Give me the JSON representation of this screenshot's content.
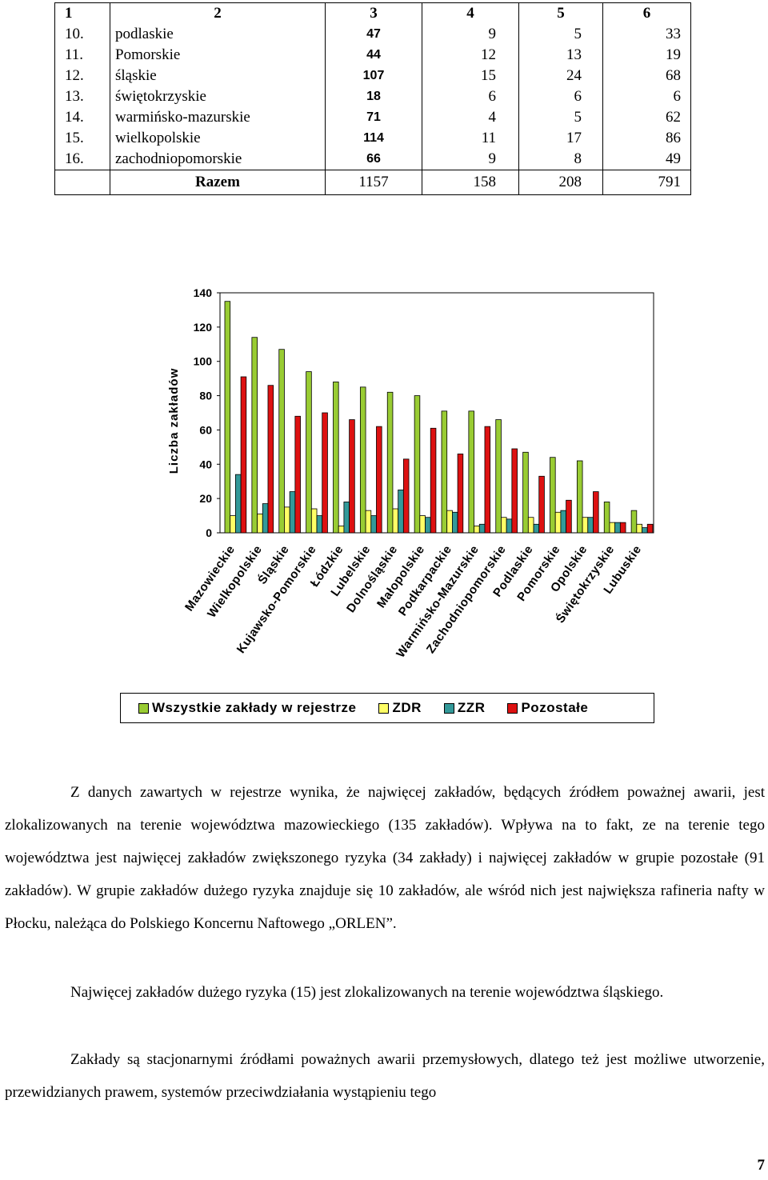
{
  "table": {
    "header": [
      "1",
      "2",
      "3",
      "4",
      "5",
      "6"
    ],
    "rows": [
      {
        "no": "10.",
        "name": "podlaskie",
        "c3": "47",
        "c4": "9",
        "c5": "5",
        "c6": "33"
      },
      {
        "no": "11.",
        "name": "Pomorskie",
        "c3": "44",
        "c4": "12",
        "c5": "13",
        "c6": "19"
      },
      {
        "no": "12.",
        "name": "śląskie",
        "c3": "107",
        "c4": "15",
        "c5": "24",
        "c6": "68"
      },
      {
        "no": "13.",
        "name": "świętokrzyskie",
        "c3": "18",
        "c4": "6",
        "c5": "6",
        "c6": "6"
      },
      {
        "no": "14.",
        "name": "warmińsko-mazurskie",
        "c3": "71",
        "c4": "4",
        "c5": "5",
        "c6": "62"
      },
      {
        "no": "15.",
        "name": "wielkopolskie",
        "c3": "114",
        "c4": "11",
        "c5": "17",
        "c6": "86"
      },
      {
        "no": "16.",
        "name": "zachodniopomorskie",
        "c3": "66",
        "c4": "9",
        "c5": "8",
        "c6": "49"
      }
    ],
    "total": {
      "label": "Razem",
      "c3": "1157",
      "c4": "158",
      "c5": "208",
      "c6": "791"
    }
  },
  "chart_data": {
    "type": "bar",
    "title": "",
    "xlabel": "",
    "ylabel": "Liczba zakładów",
    "ylim": [
      0,
      140
    ],
    "yticks": [
      0,
      20,
      40,
      60,
      80,
      100,
      120,
      140
    ],
    "grid": false,
    "legend_position": "bottom",
    "categories": [
      "Mazowieckie",
      "Wielkopolskie",
      "Śląskie",
      "Kujawsko-Pomorskie",
      "Łódzkie",
      "Lubelskie",
      "Dolnośląskie",
      "Małopolskie",
      "Podkarpackie",
      "Warmińsko-Mazurskie",
      "Zachodniopomorskie",
      "Podlaskie",
      "Pomorskie",
      "Opolskie",
      "Świętokrzyskie",
      "Lubuskie"
    ],
    "series": [
      {
        "name": "Wszystkie zakłady w rejestrze",
        "color": "#99CC33",
        "values": [
          135,
          114,
          107,
          94,
          88,
          85,
          82,
          80,
          71,
          71,
          66,
          47,
          44,
          42,
          18,
          13
        ]
      },
      {
        "name": "ZDR",
        "color": "#FFFF66",
        "values": [
          10,
          11,
          15,
          14,
          4,
          13,
          14,
          10,
          13,
          4,
          9,
          9,
          12,
          9,
          6,
          5
        ]
      },
      {
        "name": "ZZR",
        "color": "#339999",
        "values": [
          34,
          17,
          24,
          10,
          18,
          10,
          25,
          9,
          12,
          5,
          8,
          5,
          13,
          9,
          6,
          3
        ]
      },
      {
        "name": "Pozostałe",
        "color": "#DD1111",
        "values": [
          91,
          86,
          68,
          70,
          66,
          62,
          43,
          61,
          46,
          62,
          49,
          33,
          19,
          24,
          6,
          5
        ]
      }
    ]
  },
  "paragraphs": {
    "p1": "Z danych zawartych w rejestrze wynika, że najwięcej zakładów, będących źródłem poważnej awarii, jest zlokalizowanych na terenie województwa mazowieckiego (135 zakładów). Wpływa na to fakt, ze na terenie tego województwa jest najwięcej zakładów zwiększonego ryzyka (34 zakłady) i najwięcej zakładów w grupie pozostałe (91 zakładów). W grupie zakładów dużego ryzyka znajduje się 10 zakładów, ale wśród nich jest największa rafineria nafty w Płocku, należąca do Polskiego Koncernu Naftowego „ORLEN”.",
    "p2": "Najwięcej zakładów dużego ryzyka (15) jest zlokalizowanych  na terenie województwa śląskiego.",
    "p3": "Zakłady  są stacjonarnymi źródłami poważnych awarii przemysłowych, dlatego też jest możliwe utworzenie, przewidzianych prawem, systemów przeciwdziałania wystąpieniu tego"
  },
  "page_number": "7"
}
